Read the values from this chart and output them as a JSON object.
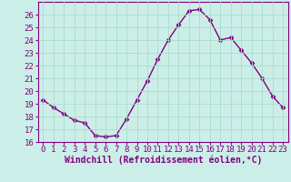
{
  "x": [
    0,
    1,
    2,
    3,
    4,
    5,
    6,
    7,
    8,
    9,
    10,
    11,
    12,
    13,
    14,
    15,
    16,
    17,
    18,
    19,
    20,
    21,
    22,
    23
  ],
  "y": [
    19.3,
    18.7,
    18.2,
    17.7,
    17.5,
    16.5,
    16.4,
    16.5,
    17.8,
    19.3,
    20.8,
    22.5,
    24.0,
    25.2,
    26.3,
    26.4,
    25.6,
    24.0,
    24.2,
    23.2,
    22.2,
    21.0,
    19.6,
    18.7
  ],
  "line_color": "#800080",
  "marker": "D",
  "marker_size": 2.5,
  "background_color": "#cceee8",
  "grid_color": "#aaddcc",
  "xlabel": "Windchill (Refroidissement éolien,°C)",
  "xlabel_color": "#800080",
  "ylim": [
    16,
    27
  ],
  "xlim": [
    -0.5,
    23.5
  ],
  "yticks": [
    16,
    17,
    18,
    19,
    20,
    21,
    22,
    23,
    24,
    25,
    26
  ],
  "xticks": [
    0,
    1,
    2,
    3,
    4,
    5,
    6,
    7,
    8,
    9,
    10,
    11,
    12,
    13,
    14,
    15,
    16,
    17,
    18,
    19,
    20,
    21,
    22,
    23
  ],
  "tick_color": "#800080",
  "tick_label_fontsize": 6.5,
  "xlabel_fontsize": 7,
  "line_width": 1.0,
  "spine_color": "#800080"
}
